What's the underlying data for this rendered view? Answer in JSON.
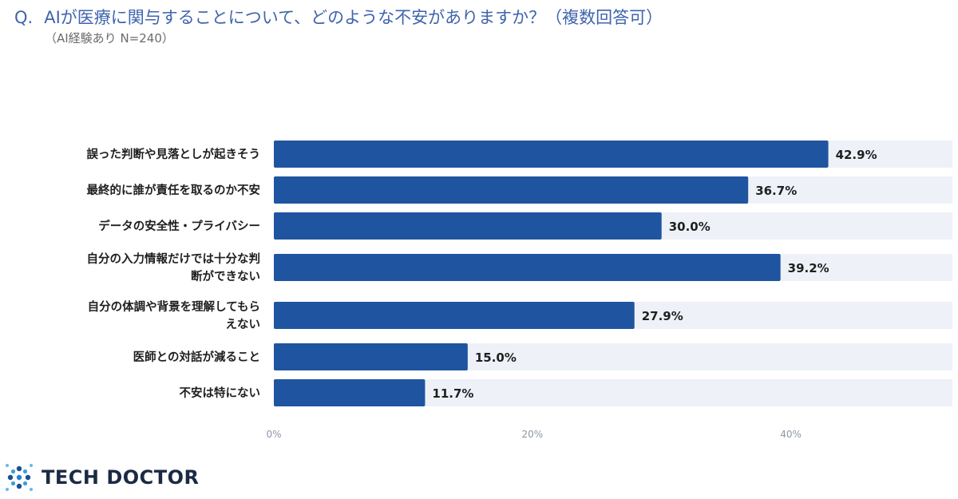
{
  "header": {
    "q_prefix": "Q.",
    "question": "AIが医療に関与することについて、どのような不安がありますか？（複数回答可）",
    "subtitle": "（AI経験あり N=240）"
  },
  "logo": {
    "text": "TECH DOCTOR"
  },
  "colors": {
    "bar": "#1f55a0",
    "track": "#eef1f7",
    "title": "#3f64ad"
  },
  "chart_data": {
    "type": "bar",
    "orientation": "horizontal",
    "categories": [
      [
        "誤った判断や見落としが起きそう"
      ],
      [
        "最終的に誰が責任を取るのか不安"
      ],
      [
        "データの安全性・プライバシー"
      ],
      [
        "自分の入力情報だけでは十分な判",
        "断ができない"
      ],
      [
        "自分の体調や背景を理解してもら",
        "えない"
      ],
      [
        "医師との対話が減ること"
      ],
      [
        "不安は特にない"
      ]
    ],
    "values": [
      42.9,
      36.7,
      30.0,
      39.2,
      27.9,
      15.0,
      11.7
    ],
    "value_labels": [
      "42.9%",
      "36.7%",
      "30.0%",
      "39.2%",
      "27.9%",
      "15.0%",
      "11.7%"
    ],
    "xticks": [
      0,
      20,
      40
    ],
    "xtick_labels": [
      "0%",
      "20%",
      "40%"
    ],
    "xlim": [
      0,
      52.5
    ],
    "grid": false
  }
}
